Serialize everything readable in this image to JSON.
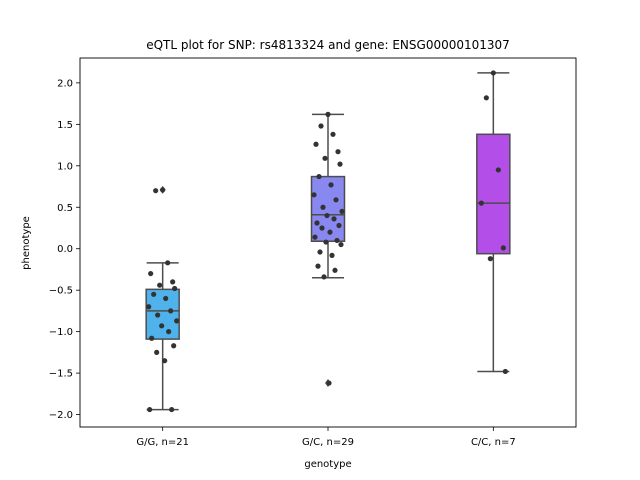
{
  "chart_data": {
    "type": "box",
    "title": "eQTL plot for SNP: rs4813324 and gene: ENSG00000101307",
    "xlabel": "genotype",
    "ylabel": "phenotype",
    "ylim": [
      -2.15,
      2.3
    ],
    "yticks": [
      -2.0,
      -1.5,
      -1.0,
      -0.5,
      0.0,
      0.5,
      1.0,
      1.5,
      2.0
    ],
    "ytick_labels": [
      "−2.0",
      "−1.5",
      "−1.0",
      "−0.5",
      "0.0",
      "0.5",
      "1.0",
      "1.5",
      "2.0"
    ],
    "grid": false,
    "categories": [
      "G/G, n=21",
      "G/C, n=29",
      "C/C, n=7"
    ],
    "boxes": [
      {
        "category": "G/G, n=21",
        "color": "#4fb2eb",
        "q1": -1.09,
        "median": -0.75,
        "q3": -0.49,
        "whisker_low": -1.94,
        "whisker_high": -0.17,
        "outliers": [
          0.71
        ],
        "points": [
          0.71,
          0.7,
          -0.17,
          -0.3,
          -0.4,
          -0.44,
          -0.48,
          -0.55,
          -0.6,
          -0.7,
          -0.75,
          -0.8,
          -0.87,
          -0.93,
          -1.0,
          -1.08,
          -1.17,
          -1.25,
          -1.35,
          -1.94,
          -1.94
        ]
      },
      {
        "category": "G/C, n=29",
        "color": "#8888f0",
        "q1": 0.09,
        "median": 0.41,
        "q3": 0.87,
        "whisker_low": -0.35,
        "whisker_high": 1.62,
        "outliers": [
          -1.62
        ],
        "points": [
          1.62,
          1.48,
          1.38,
          1.26,
          1.17,
          1.09,
          1.02,
          0.87,
          0.77,
          0.65,
          0.59,
          0.5,
          0.45,
          0.4,
          0.36,
          0.31,
          0.28,
          0.25,
          0.2,
          0.14,
          0.1,
          0.08,
          0.05,
          -0.04,
          -0.08,
          -0.21,
          -0.26,
          -0.34,
          -1.62
        ]
      },
      {
        "category": "C/C, n=7",
        "color": "#b44ee8",
        "q1": -0.06,
        "median": 0.55,
        "q3": 1.38,
        "whisker_low": -1.48,
        "whisker_high": 2.12,
        "outliers": [],
        "points": [
          2.12,
          1.82,
          0.95,
          0.55,
          0.01,
          -0.12,
          -1.48
        ]
      }
    ]
  }
}
